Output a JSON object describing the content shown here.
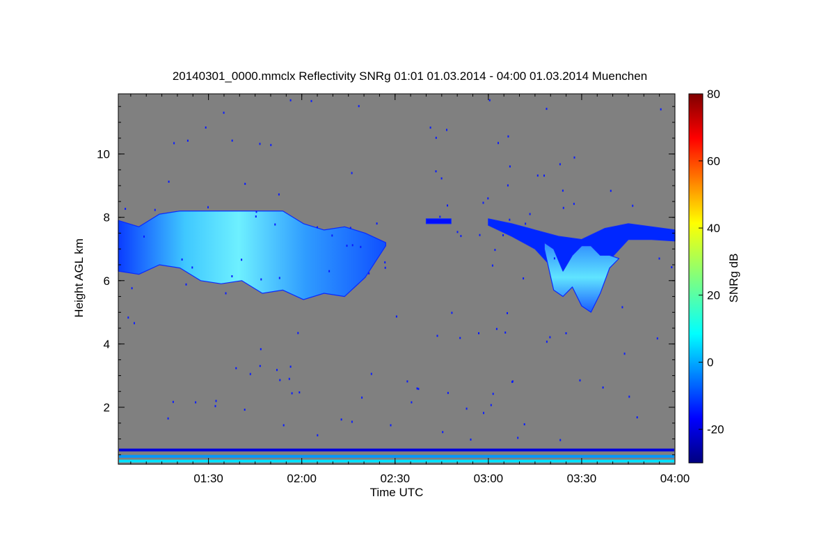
{
  "chart_data": {
    "type": "heatmap",
    "title": "20140301_0000.mmclx Reflectivity SNRg   01:01 01.03.2014 - 04:00 01.03.2014 Muenchen",
    "xlabel": "Time UTC",
    "ylabel": "Height AGL km",
    "xlim": [
      "01:01",
      "04:00"
    ],
    "ylim": [
      0.2,
      11.9
    ],
    "x_ticks": [
      "01:30",
      "02:00",
      "02:30",
      "03:00",
      "03:30",
      "04:00"
    ],
    "y_ticks": [
      "2",
      "4",
      "6",
      "8",
      "10"
    ],
    "background_color": "#808080",
    "colorbar": {
      "label": "SNRg dB",
      "range": [
        -30,
        80
      ],
      "ticks": [
        "-20",
        "0",
        "20",
        "40",
        "60",
        "80"
      ],
      "colormap": "jet"
    },
    "cloud_layers": [
      {
        "time_start": "01:01",
        "time_end": "02:27",
        "base_km": [
          6.3,
          6.2,
          6.5,
          6.4,
          6.0,
          5.9,
          6.0,
          5.6,
          5.7,
          5.4,
          5.6,
          5.5,
          6.1,
          7.1
        ],
        "top_km": [
          7.9,
          7.7,
          8.1,
          8.2,
          8.2,
          8.2,
          8.2,
          8.2,
          8.2,
          7.8,
          7.6,
          7.7,
          7.5,
          7.2
        ],
        "peak_snr_db": 10
      },
      {
        "time_start": "02:40",
        "time_end": "02:48",
        "base_km": [
          7.8,
          7.8
        ],
        "top_km": [
          7.95,
          7.95
        ],
        "peak_snr_db": -15
      },
      {
        "time_start": "03:00",
        "time_end": "04:00",
        "base_km": [
          7.75,
          7.4,
          7.0,
          6.2,
          6.0,
          6.5,
          7.3,
          7.3,
          7.25
        ],
        "top_km": [
          7.95,
          7.8,
          7.6,
          7.4,
          7.3,
          7.65,
          7.8,
          7.7,
          7.6
        ],
        "peak_snr_db": -12
      },
      {
        "time_start": "03:18",
        "time_end": "03:42",
        "base_km": [
          7.0,
          5.7,
          5.5,
          5.8,
          5.2,
          5.0,
          5.6,
          6.4,
          6.7
        ],
        "top_km": [
          7.2,
          7.0,
          6.3,
          6.8,
          7.1,
          7.1,
          6.8,
          6.8,
          6.7
        ],
        "peak_snr_db": 12
      }
    ],
    "surface_bands_km": [
      {
        "height": 0.65,
        "snr_db": -20
      },
      {
        "height": 0.45,
        "snr_db": 0
      },
      {
        "height": 0.3,
        "snr_db": 8
      }
    ]
  }
}
